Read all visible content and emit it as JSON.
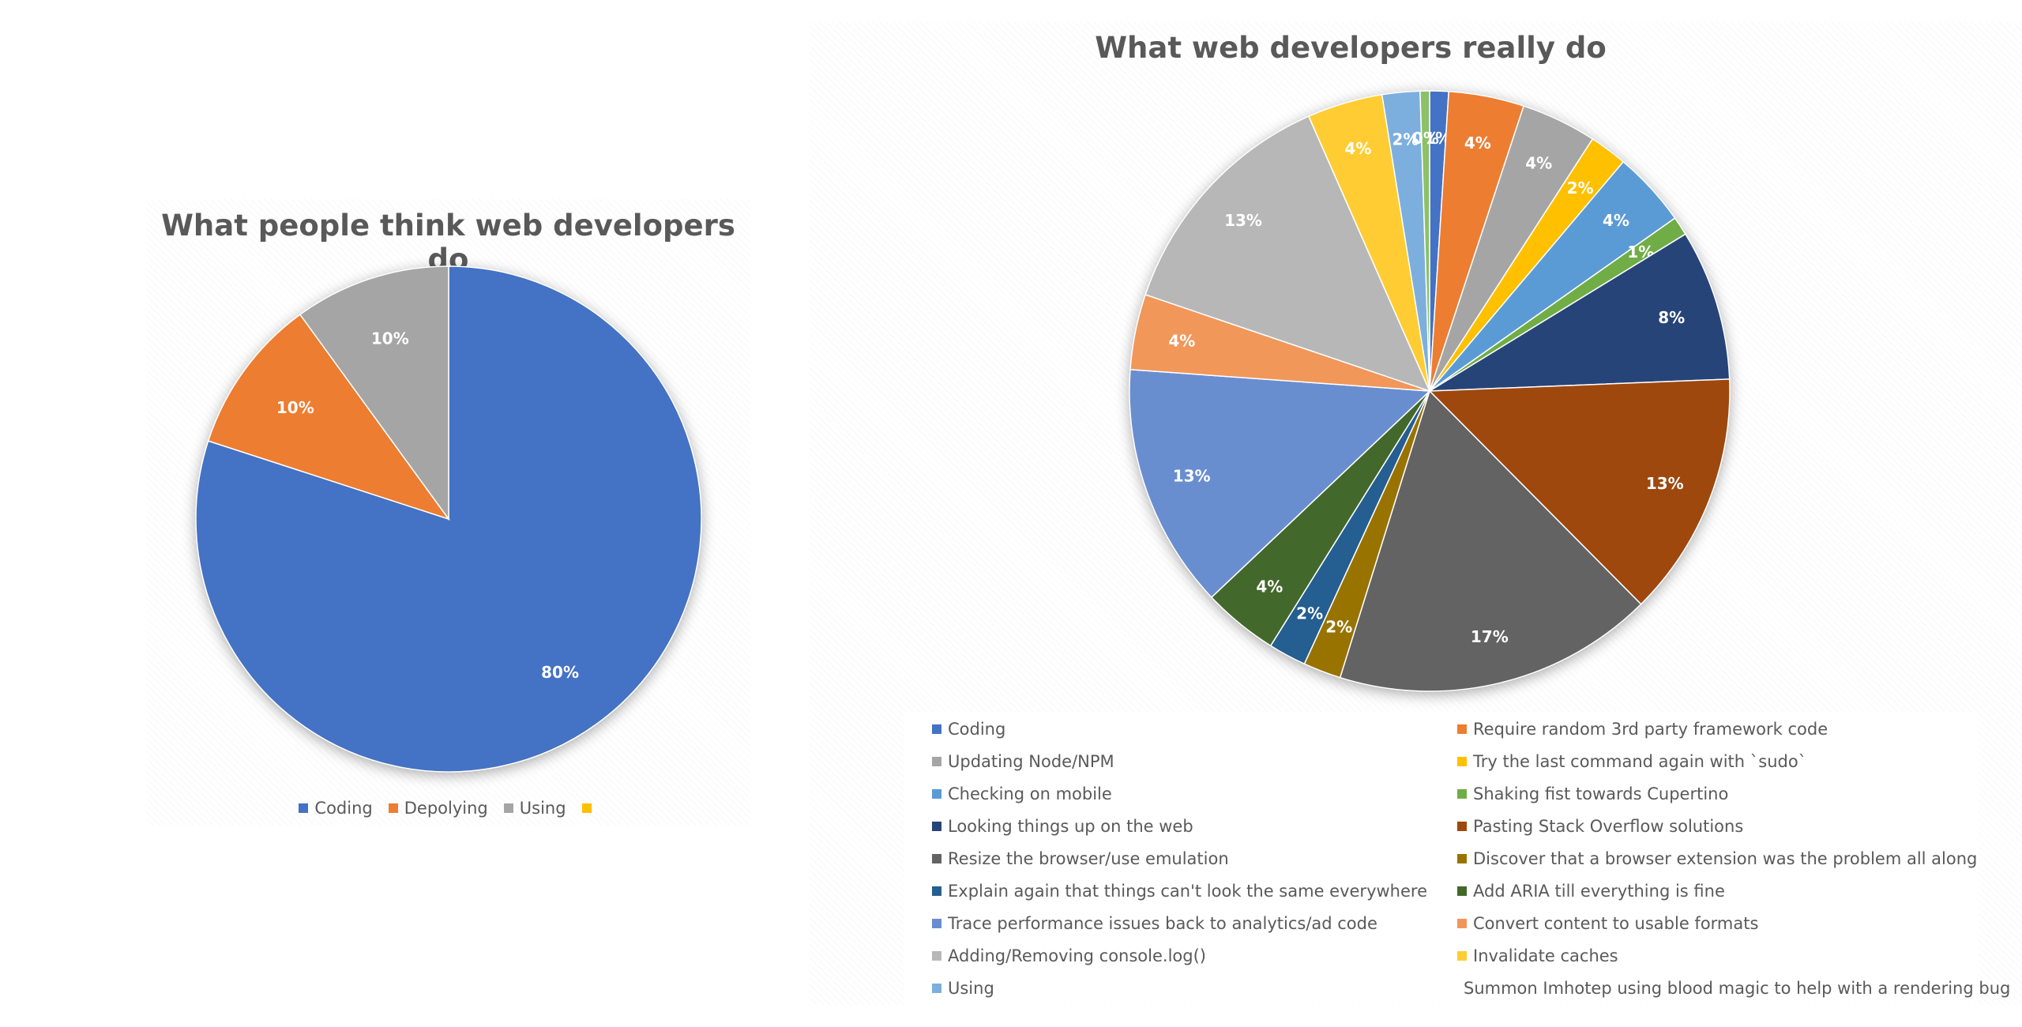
{
  "chart_data": [
    {
      "type": "pie",
      "title": "What people think web developers do",
      "categories": [
        "Coding",
        "Depolying",
        "Using",
        ""
      ],
      "values": [
        80,
        10,
        10,
        0
      ],
      "labels": [
        "80%",
        "10%",
        "10%",
        ""
      ],
      "colors": [
        "#4472C4",
        "#ED7D31",
        "#A5A5A5",
        "#FFC000"
      ],
      "legend": "bottom"
    },
    {
      "type": "pie",
      "title": "What web developers really do",
      "categories": [
        "Coding",
        "Require random 3rd party framework code",
        "Updating Node/NPM",
        "Try the last command again with `sudo`",
        "Checking on mobile",
        "Shaking fist towards Cupertino",
        "Looking things up on the web",
        "Pasting Stack Overflow solutions",
        "Resize the browser/use emulation",
        "Discover that a browser extension was the problem all along",
        "Explain again that things can't look the same everywhere",
        "Add ARIA till everything is fine",
        "Trace performance issues back to analytics/ad code",
        "Convert content to usable formats",
        "Adding/Removing console.log()",
        "Invalidate caches",
        "Using",
        "Summon Imhotep using blood magic to help with a rendering bug"
      ],
      "values": [
        1,
        4,
        4,
        2,
        4,
        1,
        8,
        13,
        17,
        2,
        2,
        4,
        13,
        4,
        13,
        4,
        2,
        0.5
      ],
      "labels": [
        "1%",
        "4%",
        "4%",
        "2%",
        "4%",
        "1%",
        "8%",
        "13%",
        "17%",
        "2%",
        "2%",
        "4%",
        "13%",
        "4%",
        "13%",
        "4%",
        "2%",
        "0%"
      ],
      "colors": [
        "#4472C4",
        "#ED7D31",
        "#A5A5A5",
        "#FFC000",
        "#5B9BD5",
        "#70AD47",
        "#264478",
        "#9E480E",
        "#636363",
        "#997300",
        "#255E91",
        "#43682B",
        "#698ED0",
        "#F1975A",
        "#B7B7B7",
        "#FFCD33",
        "#7CAFDD",
        "#8CC168"
      ],
      "legend": "bottom"
    }
  ]
}
